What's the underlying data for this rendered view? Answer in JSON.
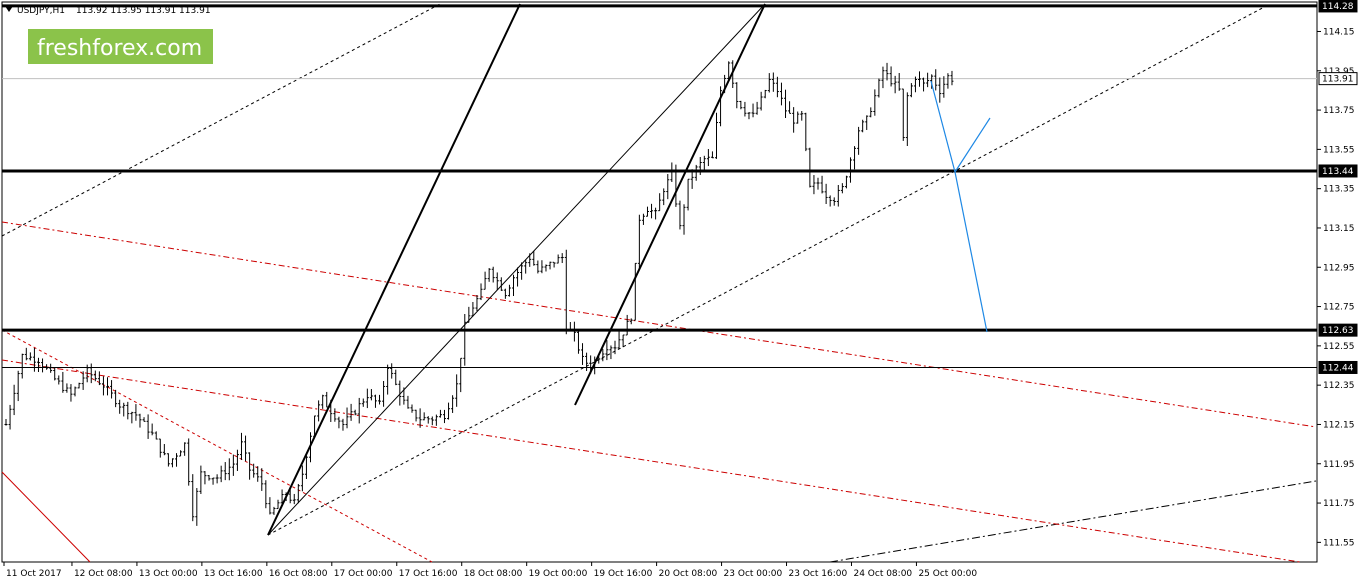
{
  "header": {
    "symbol_label": "USDJPY,H1",
    "ohlc_label": "113.92 113.95 113.91 113.91"
  },
  "watermark": {
    "text": "freshforex.com",
    "background_color": "#8bc34a",
    "text_color": "#ffffff"
  },
  "chart_data": {
    "type": "candlestick",
    "symbol": "USDJPY",
    "timeframe": "H1",
    "ylim": [
      111.45,
      114.3
    ],
    "y_ticks": [
      {
        "value": 114.15,
        "label": "114.15"
      },
      {
        "value": 113.95,
        "label": "113.95"
      },
      {
        "value": 113.75,
        "label": "113.75"
      },
      {
        "value": 113.55,
        "label": "113.55"
      },
      {
        "value": 113.35,
        "label": "113.35"
      },
      {
        "value": 113.15,
        "label": "113.15"
      },
      {
        "value": 112.95,
        "label": "112.95"
      },
      {
        "value": 112.75,
        "label": "112.75"
      },
      {
        "value": 112.55,
        "label": "112.55"
      },
      {
        "value": 112.35,
        "label": "112.35"
      },
      {
        "value": 112.15,
        "label": "112.15"
      },
      {
        "value": 111.95,
        "label": "111.95"
      },
      {
        "value": 111.75,
        "label": "111.75"
      },
      {
        "value": 111.55,
        "label": "111.55"
      }
    ],
    "x_ticks": [
      {
        "bar": 0,
        "label": "11 Oct 2017"
      },
      {
        "bar": 16,
        "label": "12 Oct 08:00"
      },
      {
        "bar": 32,
        "label": "13 Oct 00:00"
      },
      {
        "bar": 48,
        "label": "13 Oct 16:00"
      },
      {
        "bar": 64,
        "label": "16 Oct 08:00"
      },
      {
        "bar": 80,
        "label": "17 Oct 00:00"
      },
      {
        "bar": 96,
        "label": "17 Oct 16:00"
      },
      {
        "bar": 112,
        "label": "18 Oct 08:00"
      },
      {
        "bar": 128,
        "label": "19 Oct 00:00"
      },
      {
        "bar": 144,
        "label": "19 Oct 16:00"
      },
      {
        "bar": 160,
        "label": "20 Oct 08:00"
      },
      {
        "bar": 176,
        "label": "23 Oct 00:00"
      },
      {
        "bar": 192,
        "label": "23 Oct 16:00"
      },
      {
        "bar": 208,
        "label": "24 Oct 08:00"
      },
      {
        "bar": 224,
        "label": "25 Oct 00:00"
      }
    ],
    "bar_count_visible": 330,
    "price_path": [
      [
        0,
        112.15
      ],
      [
        4,
        112.5
      ],
      [
        8,
        112.48
      ],
      [
        12,
        112.38
      ],
      [
        16,
        112.3
      ],
      [
        20,
        112.42
      ],
      [
        24,
        112.35
      ],
      [
        28,
        112.25
      ],
      [
        32,
        112.2
      ],
      [
        36,
        112.1
      ],
      [
        40,
        111.95
      ],
      [
        44,
        112.05
      ],
      [
        46,
        111.7
      ],
      [
        48,
        111.9
      ],
      [
        52,
        111.88
      ],
      [
        56,
        111.95
      ],
      [
        58,
        112.05
      ],
      [
        60,
        111.92
      ],
      [
        63,
        111.85
      ],
      [
        65,
        111.68
      ],
      [
        67,
        111.75
      ],
      [
        69,
        111.8
      ],
      [
        71,
        111.75
      ],
      [
        73,
        111.9
      ],
      [
        76,
        112.2
      ],
      [
        78,
        112.28
      ],
      [
        80,
        112.22
      ],
      [
        83,
        112.15
      ],
      [
        86,
        112.22
      ],
      [
        89,
        112.3
      ],
      [
        92,
        112.25
      ],
      [
        94,
        112.45
      ],
      [
        96,
        112.35
      ],
      [
        99,
        112.22
      ],
      [
        102,
        112.18
      ],
      [
        105,
        112.18
      ],
      [
        108,
        112.2
      ],
      [
        111,
        112.35
      ],
      [
        113,
        112.65
      ],
      [
        115,
        112.75
      ],
      [
        117,
        112.82
      ],
      [
        119,
        112.95
      ],
      [
        121,
        112.88
      ],
      [
        123,
        112.82
      ],
      [
        125,
        112.9
      ],
      [
        127,
        112.95
      ],
      [
        129,
        113.0
      ],
      [
        131,
        112.93
      ],
      [
        133,
        112.95
      ],
      [
        135,
        112.98
      ],
      [
        137,
        113.0
      ],
      [
        138,
        112.65
      ],
      [
        140,
        112.6
      ],
      [
        142,
        112.48
      ],
      [
        144,
        112.45
      ],
      [
        146,
        112.5
      ],
      [
        148,
        112.55
      ],
      [
        150,
        112.55
      ],
      [
        152,
        112.62
      ],
      [
        154,
        112.7
      ],
      [
        156,
        113.2
      ],
      [
        158,
        113.25
      ],
      [
        160,
        113.22
      ],
      [
        162,
        113.35
      ],
      [
        164,
        113.42
      ],
      [
        166,
        113.15
      ],
      [
        168,
        113.38
      ],
      [
        170,
        113.45
      ],
      [
        172,
        113.5
      ],
      [
        174,
        113.5
      ],
      [
        176,
        113.85
      ],
      [
        178,
        114.0
      ],
      [
        180,
        113.8
      ],
      [
        182,
        113.75
      ],
      [
        184,
        113.72
      ],
      [
        186,
        113.8
      ],
      [
        188,
        113.9
      ],
      [
        190,
        113.85
      ],
      [
        192,
        113.75
      ],
      [
        194,
        113.7
      ],
      [
        196,
        113.72
      ],
      [
        198,
        113.35
      ],
      [
        200,
        113.38
      ],
      [
        202,
        113.32
      ],
      [
        204,
        113.3
      ],
      [
        206,
        113.35
      ],
      [
        208,
        113.5
      ],
      [
        210,
        113.65
      ],
      [
        212,
        113.7
      ],
      [
        214,
        113.82
      ],
      [
        216,
        113.95
      ],
      [
        218,
        113.9
      ],
      [
        220,
        113.85
      ],
      [
        221,
        113.6
      ],
      [
        222,
        113.82
      ],
      [
        224,
        113.92
      ],
      [
        226,
        113.88
      ],
      [
        228,
        113.92
      ],
      [
        230,
        113.85
      ],
      [
        232,
        113.92
      ],
      [
        233,
        113.91
      ]
    ],
    "horizontal_levels": [
      {
        "price": 114.28,
        "label": "114.28",
        "weight": "bold"
      },
      {
        "price": 113.91,
        "label": "113.91",
        "weight": "current"
      },
      {
        "price": 113.44,
        "label": "113.44",
        "weight": "bold"
      },
      {
        "price": 112.63,
        "label": "112.63",
        "weight": "bold"
      },
      {
        "price": 112.44,
        "label": "112.44",
        "weight": "normal"
      }
    ],
    "grid": false,
    "colors": {
      "candles": "#000000",
      "support_resistance": "#000000",
      "red_channel": "#cc0000",
      "forecast": "#1e88e5",
      "dotted_channel": "#000000"
    }
  }
}
